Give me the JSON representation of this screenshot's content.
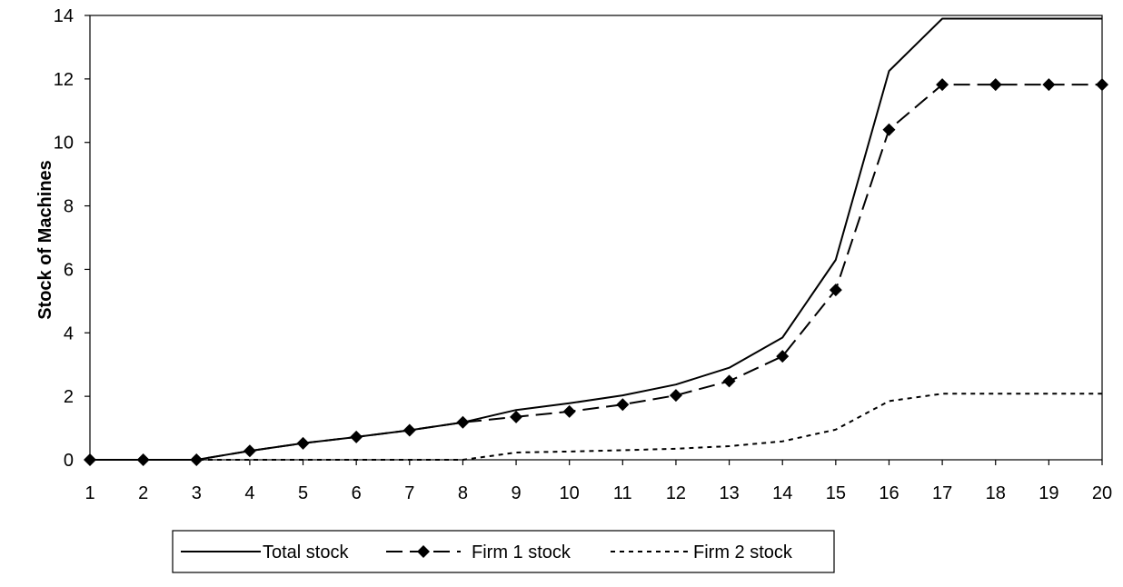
{
  "chart_data": {
    "type": "line",
    "title": "",
    "xlabel": "",
    "ylabel": "Stock of Machines",
    "categories": [
      "1",
      "2",
      "3",
      "4",
      "5",
      "6",
      "7",
      "8",
      "9",
      "10",
      "11",
      "12",
      "13",
      "14",
      "15",
      "16",
      "17",
      "18",
      "19",
      "20"
    ],
    "ylim": [
      0,
      14
    ],
    "yticks": [
      0,
      2,
      4,
      6,
      8,
      10,
      12,
      14
    ],
    "grid": false,
    "legend_position": "bottom",
    "series": [
      {
        "name": "Total stock",
        "style": "solid",
        "marker": "none",
        "color": "#000000",
        "values": [
          0,
          0,
          0,
          0.28,
          0.52,
          0.72,
          0.93,
          1.18,
          1.57,
          1.78,
          2.03,
          2.37,
          2.9,
          3.85,
          6.3,
          12.25,
          13.9,
          13.9,
          13.9,
          13.9
        ]
      },
      {
        "name": "Firm 1 stock",
        "style": "dashed",
        "marker": "diamond",
        "color": "#000000",
        "values": [
          0,
          0,
          0,
          0.28,
          0.52,
          0.72,
          0.93,
          1.18,
          1.35,
          1.52,
          1.74,
          2.03,
          2.48,
          3.26,
          5.35,
          10.4,
          11.82,
          11.82,
          11.82,
          11.82
        ]
      },
      {
        "name": "Firm 2 stock",
        "style": "dotted",
        "marker": "none",
        "color": "#000000",
        "values": [
          0,
          0,
          0,
          0,
          0,
          0,
          0,
          0,
          0.23,
          0.26,
          0.3,
          0.35,
          0.43,
          0.58,
          0.95,
          1.85,
          2.08,
          2.08,
          2.08,
          2.08
        ]
      }
    ]
  }
}
